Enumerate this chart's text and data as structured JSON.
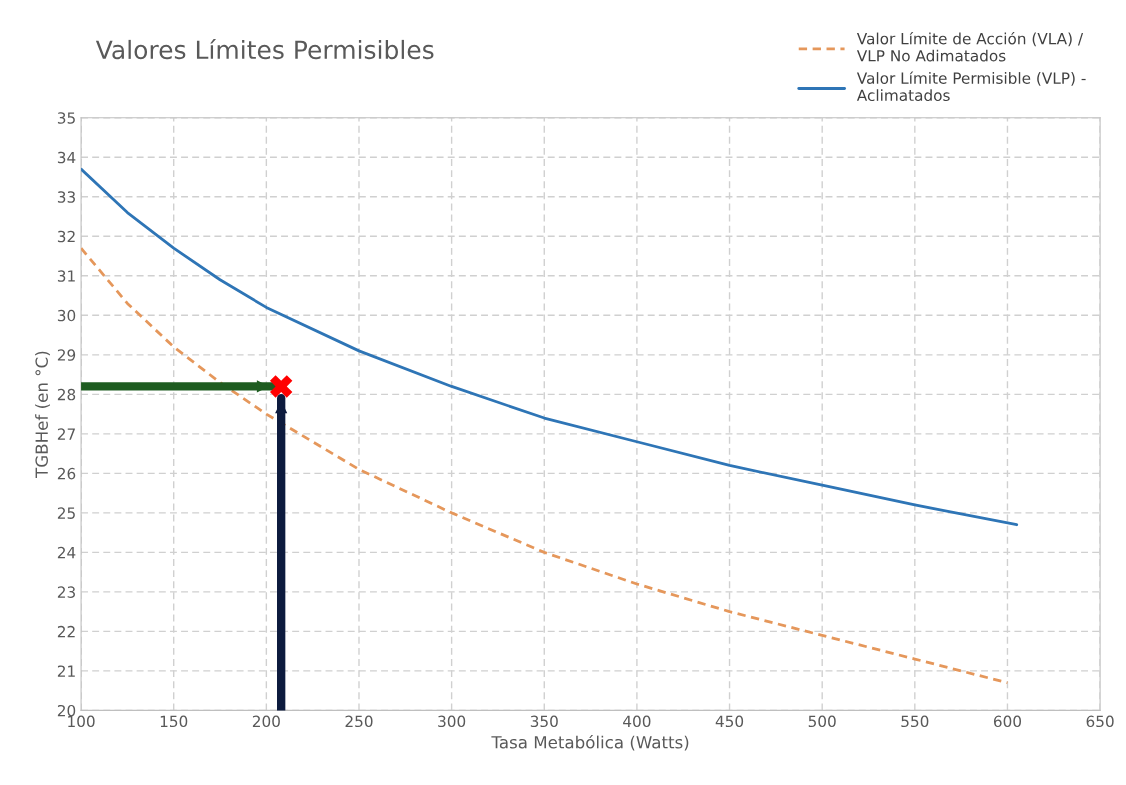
{
  "chart_data": {
    "type": "line",
    "title": "Valores Límites Permisibles",
    "xlabel": "Tasa Metabólica (Watts)",
    "ylabel": "TGBHef (en °C)",
    "xlim": [
      100,
      650
    ],
    "xticks": [
      100,
      150,
      200,
      250,
      300,
      350,
      400,
      450,
      500,
      550,
      600,
      650
    ],
    "ylim": [
      20,
      35
    ],
    "yticks": [
      20,
      21,
      22,
      23,
      24,
      25,
      26,
      27,
      28,
      29,
      30,
      31,
      32,
      33,
      34,
      35
    ],
    "grid": true,
    "legend": "top right",
    "marker": "none",
    "series": [
      {
        "name": "Valor Límite de Acción (VLA) /\nVLP No Adimatados",
        "color": "#e5975b",
        "line_style": "dashed",
        "x": [
          100,
          125,
          150,
          175,
          200,
          250,
          300,
          350,
          400,
          450,
          500,
          550,
          600
        ],
        "values": [
          31.7,
          30.3,
          29.2,
          28.3,
          27.5,
          26.1,
          25.0,
          24.0,
          23.2,
          22.5,
          21.9,
          21.3,
          20.7
        ]
      },
      {
        "name": "Valor Límite Permisible (VLP) -\nAclimatados",
        "color": "#2e75b6",
        "line_style": "solid",
        "x": [
          100,
          125,
          150,
          175,
          200,
          250,
          300,
          350,
          400,
          450,
          500,
          550,
          605
        ],
        "values": [
          33.7,
          32.6,
          31.7,
          30.9,
          30.2,
          29.1,
          28.2,
          27.4,
          26.8,
          26.2,
          25.7,
          25.2,
          24.7
        ]
      },
      {
        "type": "line",
        "color": "#1e5c20",
        "line_style": "solid",
        "x": [
          100,
          203
        ],
        "values": [
          28.2,
          28.2
        ]
      },
      {
        "type": "line",
        "color": "#0d1b3e",
        "line_style": "solid",
        "x": [
          208,
          208
        ],
        "values": [
          20,
          27.9
        ]
      },
      {
        "type": "scatter",
        "color": "#ff0000",
        "marker": "cross",
        "x": [
          208
        ],
        "values": [
          28.2
        ]
      }
    ]
  }
}
